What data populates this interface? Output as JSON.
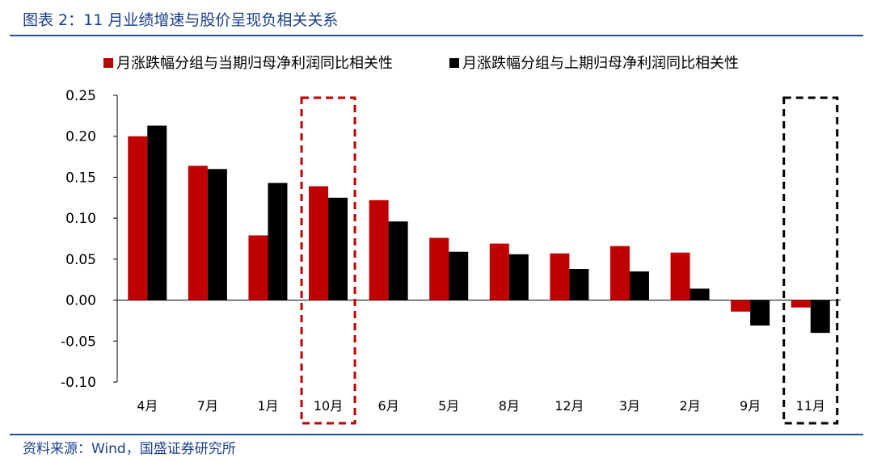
{
  "header": {
    "title": "图表 2：11 月业绩增速与股价呈现负相关关系"
  },
  "footer": {
    "source": "资料来源：Wind，国盛证券研究所"
  },
  "colors": {
    "series_current": "#c00000",
    "series_previous": "#000000",
    "highlight_red": "#c00000",
    "highlight_black": "#000000",
    "rule": "#1f4e9a",
    "title_text": "#1a3f8a"
  },
  "chart_data": {
    "type": "bar",
    "title": "",
    "xlabel": "",
    "ylabel": "",
    "ylim": [
      -0.1,
      0.25
    ],
    "yticks": [
      "0.25",
      "0.20",
      "0.15",
      "0.10",
      "0.05",
      "0.00",
      "-0.05",
      "-0.10"
    ],
    "legend_position": "top",
    "categories": [
      "4月",
      "7月",
      "1月",
      "10月",
      "6月",
      "5月",
      "8月",
      "12月",
      "3月",
      "2月",
      "9月",
      "11月"
    ],
    "series": [
      {
        "name": "月涨跌幅分组与当期归母净利润同比相关性",
        "color": "#c00000",
        "values": [
          0.2,
          0.164,
          0.079,
          0.139,
          0.122,
          0.076,
          0.069,
          0.057,
          0.066,
          0.058,
          -0.014,
          -0.009
        ]
      },
      {
        "name": "月涨跌幅分组与上期归母净利润同比相关性",
        "color": "#000000",
        "values": [
          0.213,
          0.16,
          0.143,
          0.125,
          0.096,
          0.059,
          0.056,
          0.038,
          0.035,
          0.014,
          -0.031,
          -0.04
        ]
      }
    ],
    "highlights": [
      {
        "category": "10月",
        "color": "#c00000",
        "style": "dashed"
      },
      {
        "category": "11月",
        "color": "#000000",
        "style": "dashed"
      }
    ]
  }
}
